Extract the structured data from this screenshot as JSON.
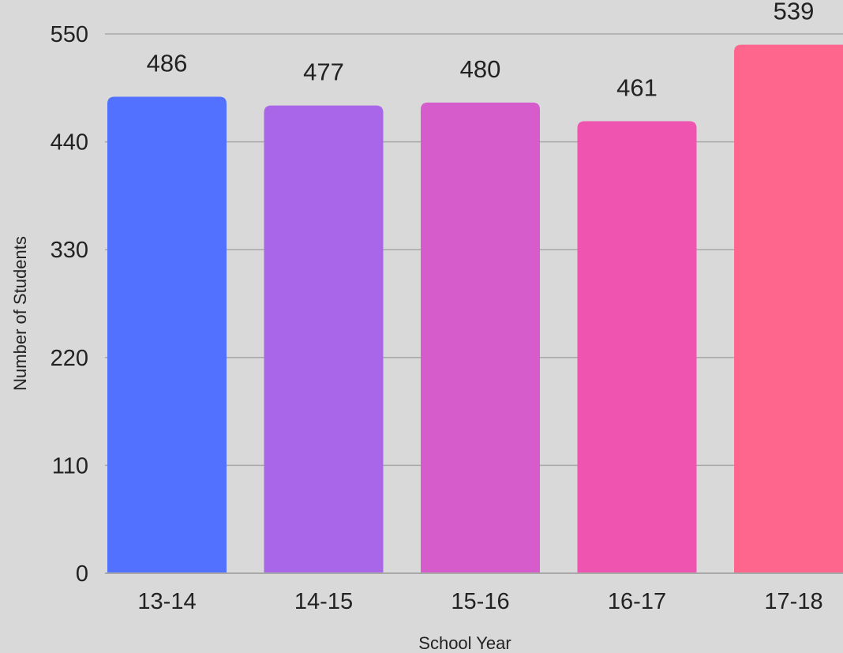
{
  "chart_data": {
    "type": "bar",
    "title": "",
    "xlabel": "School Year",
    "ylabel": "Number of Students",
    "categories": [
      "13-14",
      "14-15",
      "15-16",
      "16-17",
      "17-18"
    ],
    "values": [
      486,
      477,
      480,
      461,
      539
    ],
    "data_labels": [
      "486",
      "477",
      "480",
      "461",
      "539"
    ],
    "bar_colors": [
      "#5271ff",
      "#a966e8",
      "#d65ccc",
      "#ef55b0",
      "#ff668e"
    ],
    "ylim": [
      0,
      550
    ],
    "y_ticks": [
      0,
      110,
      220,
      330,
      440,
      550
    ],
    "y_tick_labels": [
      "0",
      "110",
      "220",
      "330",
      "440",
      "550"
    ],
    "grid": true,
    "legend": "none",
    "background": "#d9d9d9"
  }
}
